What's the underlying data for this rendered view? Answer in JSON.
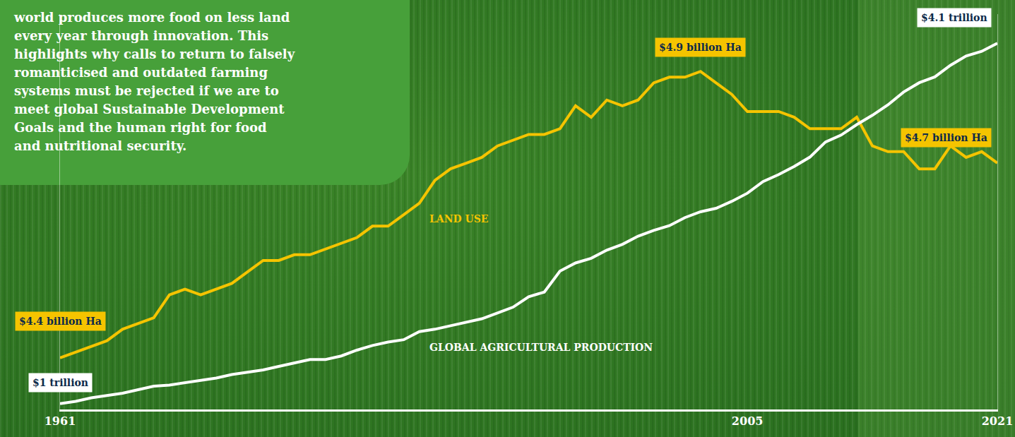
{
  "chart_data": {
    "type": "line",
    "annotations": [
      "world produces more food on less land",
      "every year through innovation. This",
      "highlights why calls to return to falsely",
      "romanticised and outdated farming",
      "systems must be rejected if we are to",
      "meet global Sustainable Development",
      "Goals and the human right for food",
      "and nutritional security."
    ],
    "x": [
      1961,
      1962,
      1963,
      1964,
      1965,
      1966,
      1967,
      1968,
      1969,
      1970,
      1971,
      1972,
      1973,
      1974,
      1975,
      1976,
      1977,
      1978,
      1979,
      1980,
      1981,
      1982,
      1983,
      1984,
      1985,
      1986,
      1987,
      1988,
      1989,
      1990,
      1991,
      1992,
      1993,
      1994,
      1995,
      1996,
      1997,
      1998,
      1999,
      2000,
      2001,
      2002,
      2003,
      2004,
      2005,
      2006,
      2007,
      2008,
      2009,
      2010,
      2011,
      2012,
      2013,
      2014,
      2015,
      2016,
      2017,
      2018,
      2019,
      2020,
      2021
    ],
    "xlim": [
      1961,
      2021
    ],
    "xticks": [
      1961,
      2005,
      2021
    ],
    "ylim": [
      4.31,
      5.0
    ],
    "y2lim": [
      0.95,
      4.35
    ],
    "grid": false,
    "tick_labels": "x",
    "series": [
      {
        "name": "LAND USE",
        "color": "#f5c400",
        "axis": "y",
        "values": [
          4.4,
          4.41,
          4.42,
          4.43,
          4.45,
          4.46,
          4.47,
          4.51,
          4.52,
          4.51,
          4.52,
          4.53,
          4.55,
          4.57,
          4.57,
          4.58,
          4.58,
          4.59,
          4.6,
          4.61,
          4.63,
          4.63,
          4.65,
          4.67,
          4.71,
          4.73,
          4.74,
          4.75,
          4.77,
          4.78,
          4.79,
          4.79,
          4.8,
          4.84,
          4.82,
          4.85,
          4.84,
          4.85,
          4.88,
          4.89,
          4.89,
          4.9,
          4.88,
          4.86,
          4.83,
          4.83,
          4.83,
          4.82,
          4.8,
          4.8,
          4.8,
          4.82,
          4.77,
          4.76,
          4.76,
          4.73,
          4.73,
          4.77,
          4.75,
          4.76,
          4.74
        ],
        "value_labels": [
          "$4.4 billion Ha",
          null,
          null,
          null,
          null,
          null,
          null,
          null,
          null,
          null,
          null,
          null,
          null,
          null,
          null,
          null,
          null,
          null,
          null,
          null,
          null,
          null,
          null,
          null,
          null,
          null,
          null,
          null,
          null,
          null,
          null,
          null,
          null,
          null,
          null,
          null,
          null,
          null,
          null,
          null,
          null,
          "$4.9 billion Ha",
          null,
          null,
          null,
          null,
          null,
          null,
          null,
          null,
          null,
          null,
          null,
          null,
          null,
          null,
          null,
          null,
          null,
          null,
          "$4.7 billion Ha"
        ]
      },
      {
        "name": "GLOBAL AGRICULTURAL PRODUCTION",
        "color": "#ffffff",
        "axis": "y2",
        "values": [
          1.0,
          1.02,
          1.05,
          1.07,
          1.09,
          1.12,
          1.15,
          1.16,
          1.18,
          1.2,
          1.22,
          1.25,
          1.27,
          1.29,
          1.32,
          1.35,
          1.38,
          1.38,
          1.41,
          1.46,
          1.5,
          1.53,
          1.55,
          1.62,
          1.64,
          1.67,
          1.7,
          1.73,
          1.78,
          1.83,
          1.92,
          1.96,
          2.14,
          2.21,
          2.25,
          2.32,
          2.37,
          2.44,
          2.49,
          2.53,
          2.6,
          2.65,
          2.68,
          2.74,
          2.81,
          2.91,
          2.97,
          3.04,
          3.12,
          3.25,
          3.31,
          3.4,
          3.48,
          3.57,
          3.68,
          3.76,
          3.81,
          3.91,
          3.99,
          4.03,
          4.1
        ],
        "value_labels": [
          "$1 trillion",
          null,
          null,
          null,
          null,
          null,
          null,
          null,
          null,
          null,
          null,
          null,
          null,
          null,
          null,
          null,
          null,
          null,
          null,
          null,
          null,
          null,
          null,
          null,
          null,
          null,
          null,
          null,
          null,
          null,
          null,
          null,
          null,
          null,
          null,
          null,
          null,
          null,
          null,
          null,
          null,
          null,
          null,
          null,
          null,
          null,
          null,
          null,
          null,
          null,
          null,
          null,
          null,
          null,
          null,
          null,
          null,
          null,
          null,
          null,
          "$4.1 trillion"
        ]
      }
    ]
  }
}
